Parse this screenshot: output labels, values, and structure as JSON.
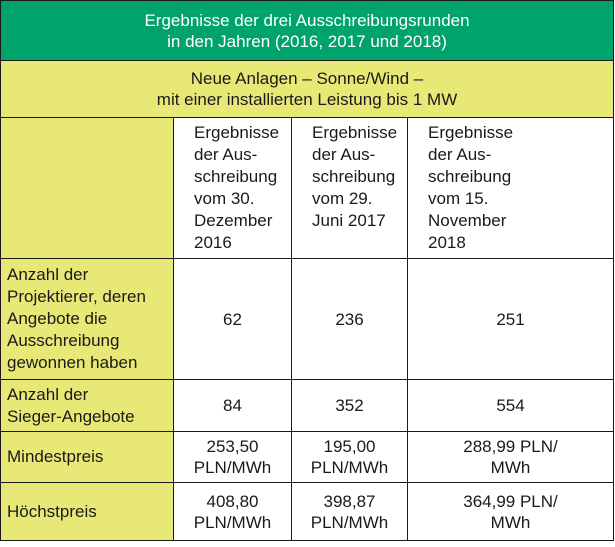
{
  "title": "Ergebnisse der drei Ausschreibungsrunden\nin den Jahren (2016, 2017 und 2018)",
  "subtitle": "Neue Anlagen – Sonne/Wind –\nmit einer installierten Leistung bis 1 MW",
  "columns": [
    "Ergebnisse\nder Aus-\nschreibung\nvom 30.\nDezember\n2016",
    "Ergebnisse\nder Aus-\nschreibung\nvom 29.\nJuni 2017",
    "Ergebnisse\nder Aus-\nschreibung\nvom 15.\nNovember\n2018"
  ],
  "rows": [
    {
      "label": "Anzahl der\nProjektierer, deren\nAngebote die\nAusschreibung\ngewonnen haben",
      "values": [
        "62",
        "236",
        "251"
      ]
    },
    {
      "label": "Anzahl der\nSieger-Angebote",
      "values": [
        "84",
        "352",
        "554"
      ]
    },
    {
      "label": "Mindestpreis",
      "values": [
        "253,50\nPLN/MWh",
        "195,00\nPLN/MWh",
        "288,99 PLN/\nMWh"
      ]
    },
    {
      "label": "Höchstpreis",
      "values": [
        "408,80\nPLN/MWh",
        "398,87\nPLN/MWh",
        "364,99 PLN/\nMWh"
      ]
    }
  ],
  "colors": {
    "title_bg": "#00a36a",
    "yellow_bg": "#e8e877",
    "border": "#1a1a1a"
  }
}
